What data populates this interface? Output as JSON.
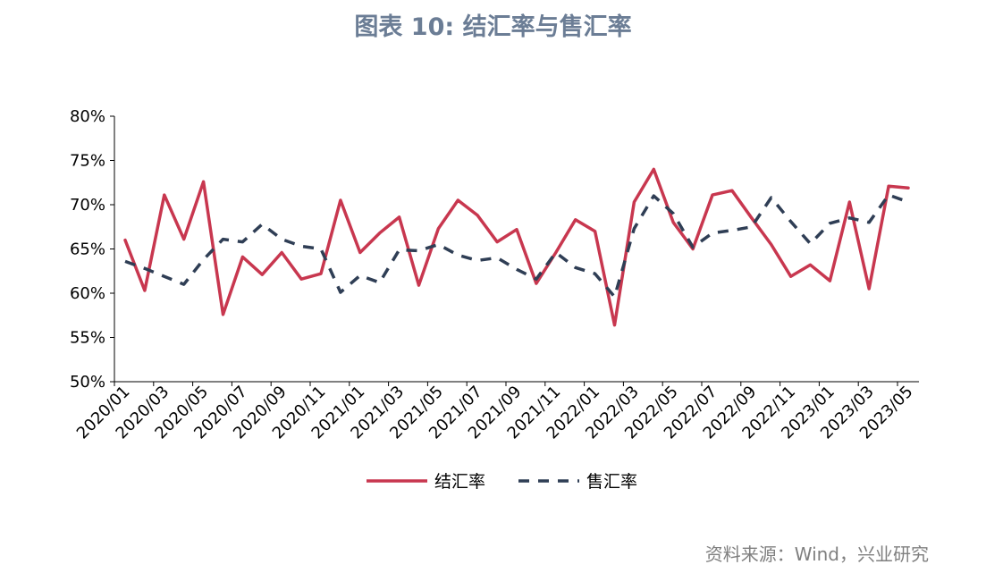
{
  "title": "图表 10: 结汇率与售汇率",
  "source": "资料来源：Wind，兴业研究",
  "chart_data": {
    "type": "line",
    "title": "图表 10: 结汇率与售汇率",
    "xlabel": "",
    "ylabel": "",
    "ylim": [
      50,
      80
    ],
    "yticks": [
      "50%",
      "55%",
      "60%",
      "65%",
      "70%",
      "75%",
      "80%"
    ],
    "x_tick_labels": [
      "2020/01",
      "2020/03",
      "2020/05",
      "2020/07",
      "2020/09",
      "2020/11",
      "2021/01",
      "2021/03",
      "2021/05",
      "2021/07",
      "2021/09",
      "2021/11",
      "2022/01",
      "2022/03",
      "2022/05",
      "2022/07",
      "2022/09",
      "2022/11",
      "2023/01",
      "2023/03",
      "2023/05"
    ],
    "x": [
      "2020/01",
      "2020/02",
      "2020/03",
      "2020/04",
      "2020/05",
      "2020/06",
      "2020/07",
      "2020/08",
      "2020/09",
      "2020/10",
      "2020/11",
      "2020/12",
      "2021/01",
      "2021/02",
      "2021/03",
      "2021/04",
      "2021/05",
      "2021/06",
      "2021/07",
      "2021/08",
      "2021/09",
      "2021/10",
      "2021/11",
      "2021/12",
      "2022/01",
      "2022/02",
      "2022/03",
      "2022/04",
      "2022/05",
      "2022/06",
      "2022/07",
      "2022/08",
      "2022/09",
      "2022/10",
      "2022/11",
      "2022/12",
      "2023/01",
      "2023/02",
      "2023/03",
      "2023/04",
      "2023/05"
    ],
    "grid": false,
    "legend": "bottom",
    "series": [
      {
        "name": "结汇率",
        "color": "#c8374f",
        "style": "solid",
        "values": [
          66.0,
          60.3,
          71.1,
          66.1,
          72.6,
          57.6,
          64.1,
          62.1,
          64.6,
          61.6,
          62.2,
          70.5,
          64.6,
          66.8,
          68.6,
          60.9,
          67.3,
          70.5,
          68.8,
          65.8,
          67.2,
          61.1,
          64.6,
          68.3,
          67.0,
          56.4,
          70.3,
          74.0,
          68.0,
          65.0,
          71.1,
          71.6,
          68.5,
          65.5,
          61.9,
          63.2,
          61.4,
          70.3,
          60.5,
          72.1,
          71.9
        ]
      },
      {
        "name": "售汇率",
        "color": "#2f3e55",
        "style": "dashed",
        "values": [
          63.6,
          62.8,
          61.9,
          61.0,
          63.8,
          66.1,
          65.8,
          67.8,
          66.1,
          65.3,
          65.0,
          60.1,
          62.0,
          61.2,
          64.9,
          64.8,
          65.5,
          64.3,
          63.7,
          64.0,
          62.7,
          61.6,
          64.6,
          62.9,
          62.2,
          59.6,
          67.3,
          71.0,
          69.0,
          65.2,
          66.8,
          67.1,
          67.5,
          70.8,
          68.1,
          65.6,
          67.9,
          68.5,
          68.0,
          71.1,
          70.3
        ]
      }
    ]
  }
}
